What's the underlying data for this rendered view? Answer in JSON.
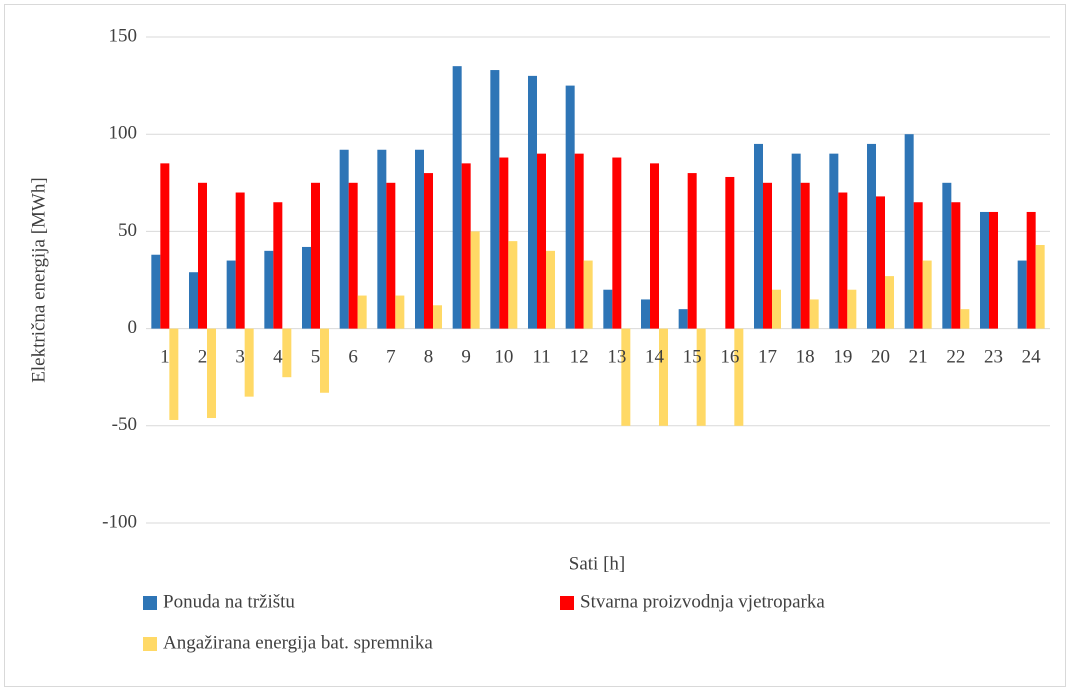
{
  "chart_data": {
    "type": "bar",
    "y_axis_label": "Električna energija [MWh]",
    "x_axis_label": "Sati [h]",
    "categories": [
      "1",
      "2",
      "3",
      "4",
      "5",
      "6",
      "7",
      "8",
      "9",
      "10",
      "11",
      "12",
      "13",
      "14",
      "15",
      "16",
      "17",
      "18",
      "19",
      "20",
      "21",
      "22",
      "23",
      "24"
    ],
    "series": [
      {
        "name": "Ponuda na tržištu",
        "color": "#2e75b6",
        "values": [
          38,
          29,
          35,
          40,
          42,
          92,
          92,
          92,
          135,
          133,
          130,
          125,
          20,
          15,
          10,
          0,
          95,
          90,
          90,
          95,
          100,
          75,
          60,
          35
        ]
      },
      {
        "name": "Stvarna proizvodnja vjetroparka",
        "color": "#ff0000",
        "values": [
          85,
          75,
          70,
          65,
          75,
          75,
          75,
          80,
          85,
          88,
          90,
          90,
          88,
          85,
          80,
          78,
          75,
          75,
          70,
          68,
          65,
          65,
          60,
          60
        ]
      },
      {
        "name": "Angažirana energija bat. spremnika",
        "color": "#ffd966",
        "values": [
          -47,
          -46,
          -35,
          -25,
          -33,
          17,
          17,
          12,
          50,
          45,
          40,
          35,
          -50,
          -50,
          -50,
          -50,
          20,
          15,
          20,
          27,
          35,
          10,
          0,
          43
        ]
      }
    ],
    "ylim": [
      -100,
      150
    ],
    "yticks": [
      -100,
      -50,
      0,
      50,
      100,
      150
    ],
    "grid": true,
    "legend": "bottom"
  }
}
